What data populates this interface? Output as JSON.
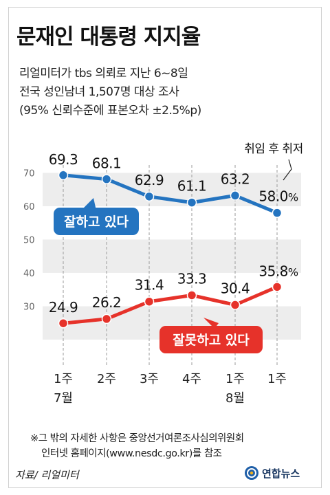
{
  "title": "문재인 대통령 지지율",
  "subtitle_lines": [
    "리얼미터가 tbs 의뢰로 지난 6~8일",
    "전국 성인남녀 1,507명 대상 조사",
    "(95% 신뢰수준에 표본오차 ±2.5%p)"
  ],
  "annotation": "취임 후 취저",
  "footnote_lines": [
    "※그 밖의 자세한 사항은 중앙선거여론조사심의위원회",
    "인터넷 홈페이지(www.nesdc.go.kr)를 참조"
  ],
  "source": "자료/ 리얼미터",
  "logo_text": "연합뉴스",
  "colors": {
    "approve": "#2474c0",
    "disapprove": "#e6322a",
    "band": "#ededed"
  },
  "chart_data": {
    "type": "line",
    "categories": [
      "1주 7월",
      "2주",
      "3주",
      "4주",
      "1주 8월",
      "1주"
    ],
    "x_tick_lines": [
      [
        "1주",
        "7월"
      ],
      [
        "2주"
      ],
      [
        "3주"
      ],
      [
        "4주"
      ],
      [
        "1주",
        "8월"
      ],
      [
        "1주"
      ]
    ],
    "y_ticks": [
      30,
      40,
      50,
      60,
      70
    ],
    "ylim": [
      20,
      74
    ],
    "grid": "alternating horizontal bands",
    "series": [
      {
        "name": "잘하고 있다",
        "values": [
          69.3,
          68.1,
          62.9,
          61.1,
          63.2,
          58.0
        ],
        "labels": [
          "69.3",
          "68.1",
          "62.9",
          "61.1",
          "63.2",
          "58.0"
        ],
        "last_suffix": "%"
      },
      {
        "name": "잘못하고 있다",
        "values": [
          24.9,
          26.2,
          31.4,
          33.3,
          30.4,
          35.8
        ],
        "labels": [
          "24.9",
          "26.2",
          "31.4",
          "33.3",
          "30.4",
          "35.8"
        ],
        "last_suffix": "%"
      }
    ]
  }
}
